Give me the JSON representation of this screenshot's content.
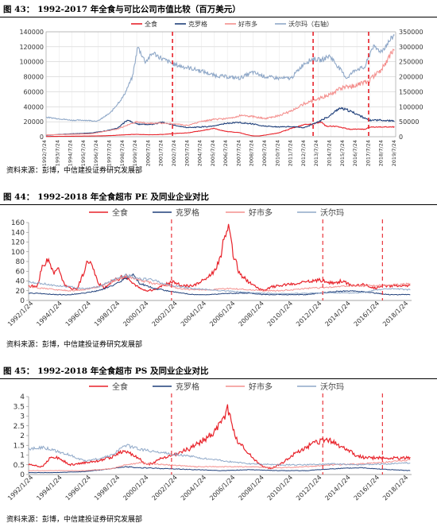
{
  "figures": [
    {
      "title_num": "图 43：",
      "title_text": "1992-2017 年全食与可比公司市值比较（百万美元）",
      "source": "资料来源：彭博，中信建投证券研究发展部"
    },
    {
      "title_num": "图 44：",
      "title_text": "1992-2018 年全食超市 PE 及同业企业对比",
      "source": "资料来源：彭博，中信建投证券研究发展部"
    },
    {
      "title_num": "图 45：",
      "title_text": "1992-2018 年全食超市 PS 及同业企业对比",
      "source": "资料来源：彭博，中信建投证券研究发展部"
    }
  ],
  "colors": {
    "whole_foods": "#e8222a",
    "kroger": "#1f3f7a",
    "costco": "#f4908e",
    "walmart": "#8fa8c8",
    "dashed": "#e8222a"
  },
  "chart_data": [
    {
      "type": "line",
      "title": "1992-2017 年全食与可比公司市值比较（百万美元）",
      "legend": [
        "全食",
        "克罗格",
        "好市多",
        "沃尔玛（右轴）"
      ],
      "legend_position": "top",
      "yticks_left": [
        "0",
        "20000",
        "40000",
        "60000",
        "80000",
        "100000",
        "120000",
        "140000"
      ],
      "yticks_right": [
        "0",
        "50000",
        "100000",
        "150000",
        "200000",
        "250000",
        "300000",
        "350000"
      ],
      "ylim_left": [
        0,
        140000
      ],
      "ylim_right": [
        0,
        350000
      ],
      "xticks": [
        "1992/7/24",
        "1993/7/24",
        "1994/7/24",
        "1995/7/24",
        "1996/7/24",
        "1997/7/24",
        "1998/7/24",
        "1999/7/24",
        "2000/7/24",
        "2001/7/24",
        "2002/7/24",
        "2003/7/24",
        "2004/7/24",
        "2005/7/24",
        "2006/7/24",
        "2007/7/24",
        "2008/7/24",
        "2009/7/24",
        "2010/7/24",
        "2011/7/24",
        "2012/7/24",
        "2013/7/24",
        "2014/7/24",
        "2015/7/24",
        "2016/7/24",
        "2017/7/24",
        "2018/7/24",
        "2019/7/24"
      ],
      "x_range": [
        1992.5,
        2019.6
      ],
      "dashed_vlines": [
        2002.3,
        2013.2,
        2017.5
      ],
      "grid": true,
      "series": [
        {
          "name": "全食",
          "axis": "left",
          "x": [
            1992.5,
            1994,
            1996,
            1997.5,
            1998.5,
            1999.5,
            2000.5,
            2001.5,
            2002.5,
            2003.5,
            2004.5,
            2005.5,
            2006.0,
            2006.5,
            2007.5,
            2008.0,
            2008.5,
            2009.0,
            2009.5,
            2010.5,
            2011.5,
            2012.5,
            2013.2,
            2013.8,
            2014.2,
            2015,
            2016,
            2017.2,
            2017.6,
            2018.5,
            2019.5
          ],
          "y": [
            300,
            600,
            900,
            1500,
            2500,
            3200,
            2600,
            3000,
            4300,
            5200,
            8000,
            11000,
            8800,
            7000,
            5500,
            3000,
            1200,
            1000,
            2200,
            5000,
            11000,
            16000,
            17000,
            20000,
            14000,
            14000,
            10000,
            10000,
            13000,
            13000,
            13000
          ]
        },
        {
          "name": "克罗格",
          "axis": "left",
          "x": [
            1992.5,
            1994,
            1996,
            1997,
            1998,
            1998.8,
            1999.5,
            2000.5,
            2001.5,
            2002.5,
            2003.5,
            2004.5,
            2005.5,
            2006.5,
            2007.5,
            2008.5,
            2009.5,
            2010.5,
            2011.5,
            2012.5,
            2013.5,
            2014.5,
            2015.2,
            2015.8,
            2016.5,
            2017.5,
            2018.5,
            2019.5
          ],
          "y": [
            2000,
            3500,
            5000,
            7500,
            11000,
            22000,
            17000,
            16000,
            19000,
            15000,
            12000,
            13000,
            14000,
            18000,
            19000,
            17000,
            14000,
            13000,
            13500,
            12000,
            19000,
            28000,
            38000,
            36000,
            31000,
            22000,
            22000,
            21000
          ]
        },
        {
          "name": "好市多",
          "axis": "left",
          "x": [
            1992.5,
            1994,
            1996,
            1998,
            1999.5,
            2000.5,
            2001.5,
            2002.5,
            2003.5,
            2004.5,
            2005.5,
            2006.5,
            2007.5,
            2008.5,
            2009.5,
            2010.5,
            2011.5,
            2012.5,
            2013.5,
            2014.5,
            2015.5,
            2016.5,
            2017.5,
            2018.5,
            2019.5
          ],
          "y": [
            2500,
            3000,
            4000,
            10000,
            20000,
            18000,
            18000,
            17000,
            15000,
            20000,
            23000,
            24000,
            28000,
            27000,
            24000,
            28000,
            34000,
            44000,
            50000,
            56000,
            66000,
            68000,
            74000,
            90000,
            118000
          ]
        },
        {
          "name": "沃尔玛（右轴）",
          "axis": "right",
          "x": [
            1992.5,
            1993.5,
            1994.5,
            1995.5,
            1996.5,
            1997.5,
            1998.5,
            1999.2,
            1999.6,
            2000.2,
            2000.8,
            2001.5,
            2002.5,
            2003.5,
            2004.5,
            2005.5,
            2006.5,
            2007.5,
            2008.5,
            2009.5,
            2010.5,
            2011.5,
            2012.5,
            2013.2,
            2013.8,
            2014.5,
            2015.2,
            2015.8,
            2016.5,
            2017.2,
            2017.8,
            2018.5,
            2019.5
          ],
          "y": [
            65000,
            60000,
            55000,
            55000,
            52000,
            80000,
            135000,
            200000,
            300000,
            250000,
            280000,
            260000,
            240000,
            230000,
            220000,
            205000,
            200000,
            195000,
            215000,
            200000,
            195000,
            195000,
            245000,
            260000,
            255000,
            270000,
            230000,
            195000,
            225000,
            230000,
            300000,
            285000,
            340000
          ]
        }
      ]
    },
    {
      "type": "line",
      "title": "1992-2018 年全食超市 PE 及同业企业对比",
      "legend": [
        "全食",
        "克罗格",
        "好市多",
        "沃尔玛"
      ],
      "legend_position": "top",
      "yticks": [
        "0",
        "20",
        "40",
        "60",
        "80",
        "100",
        "120",
        "140",
        "160"
      ],
      "ylim": [
        0,
        160
      ],
      "xticks": [
        "1992/1/24",
        "1994/1/24",
        "1996/1/24",
        "1998/1/24",
        "2000/1/24",
        "2002/1/24",
        "2004/1/24",
        "2006/1/24",
        "2008/1/24",
        "2010/1/24",
        "2012/1/24",
        "2014/1/24",
        "2016/1/24",
        "2018/1/24"
      ],
      "x_range": [
        1992.0,
        2019.6
      ],
      "dashed_vlines": [
        2002.3,
        2013.2,
        2017.5
      ],
      "grid": false,
      "series": [
        {
          "name": "全食",
          "x": [
            1992.0,
            1992.6,
            1993.0,
            1993.4,
            1993.8,
            1994.2,
            1994.6,
            1995.0,
            1995.5,
            1996.0,
            1996.3,
            1996.6,
            1997.0,
            1997.5,
            1998.0,
            1998.5,
            1999.0,
            1999.5,
            2000.0,
            2000.5,
            2001.0,
            2001.5,
            2002.0,
            2002.5,
            2003.0,
            2003.5,
            2004.0,
            2004.5,
            2005.0,
            2005.5,
            2005.9,
            2006.1,
            2006.4,
            2006.8,
            2007.2,
            2007.6,
            2008.0,
            2008.5,
            2009.0,
            2009.5,
            2010.0,
            2010.5,
            2011.0,
            2011.5,
            2012.0,
            2012.5,
            2013.0,
            2013.5,
            2014.0,
            2014.5,
            2015.0,
            2015.5,
            2016.0,
            2016.5,
            2017.0,
            2017.5,
            2018.0,
            2018.5,
            2019.5
          ],
          "y": [
            30,
            28,
            70,
            82,
            55,
            65,
            30,
            25,
            24,
            60,
            85,
            70,
            35,
            25,
            40,
            45,
            50,
            35,
            25,
            20,
            22,
            28,
            35,
            38,
            30,
            30,
            32,
            40,
            50,
            65,
            90,
            140,
            145,
            90,
            55,
            45,
            35,
            25,
            20,
            28,
            30,
            32,
            33,
            35,
            38,
            40,
            42,
            38,
            35,
            40,
            35,
            30,
            33,
            30,
            25,
            30,
            30,
            30,
            30
          ]
        },
        {
          "name": "克罗格",
          "x": [
            1992.0,
            1993,
            1994,
            1995,
            1996,
            1997,
            1998,
            1999,
            1999.5,
            2000,
            2001,
            2002,
            2003,
            2004,
            2005,
            2006,
            2007,
            2008,
            2009,
            2010,
            2011,
            2012,
            2013,
            2014,
            2015,
            2016,
            2017,
            2018,
            2019.5
          ],
          "y": [
            15,
            14,
            12,
            12,
            15,
            20,
            30,
            45,
            55,
            35,
            25,
            20,
            15,
            12,
            12,
            14,
            15,
            15,
            12,
            12,
            12,
            12,
            15,
            18,
            20,
            18,
            15,
            12,
            12
          ]
        },
        {
          "name": "好市多",
          "x": [
            1992.0,
            1993,
            1994,
            1995,
            1996,
            1997,
            1998,
            1999,
            2000,
            2001,
            2002,
            2003,
            2004,
            2005,
            2006,
            2007,
            2008,
            2009,
            2010,
            2011,
            2012,
            2013,
            2014,
            2015,
            2016,
            2017,
            2018,
            2019.5
          ],
          "y": [
            28,
            25,
            22,
            20,
            22,
            28,
            38,
            50,
            42,
            35,
            30,
            24,
            22,
            22,
            24,
            24,
            22,
            20,
            20,
            22,
            25,
            26,
            28,
            30,
            30,
            30,
            32,
            34
          ]
        },
        {
          "name": "沃尔玛",
          "x": [
            1992.0,
            1993,
            1994,
            1995,
            1996,
            1997,
            1998,
            1999,
            2000,
            2001,
            2002,
            2003,
            2004,
            2005,
            2006,
            2007,
            2008,
            2009,
            2010,
            2011,
            2012,
            2013,
            2014,
            2015,
            2016,
            2017,
            2018,
            2019.5
          ],
          "y": [
            38,
            35,
            30,
            28,
            24,
            28,
            40,
            52,
            45,
            42,
            32,
            28,
            24,
            22,
            20,
            18,
            16,
            15,
            14,
            14,
            15,
            15,
            16,
            15,
            16,
            22,
            24,
            22
          ]
        }
      ]
    },
    {
      "type": "line",
      "title": "1992-2018 年全食超市 PS 及同业企业对比",
      "legend": [
        "全食",
        "克罗格",
        "好市多",
        "沃尔玛"
      ],
      "legend_position": "top",
      "yticks": [
        "0",
        "0.5",
        "1",
        "1.5",
        "2",
        "2.5",
        "3",
        "3.5",
        "4"
      ],
      "ylim": [
        0,
        4
      ],
      "xticks": [
        "1992/1/24",
        "1994/1/24",
        "1996/1/24",
        "1998/1/24",
        "2000/1/24",
        "2002/1/24",
        "2004/1/24",
        "2006/1/24",
        "2008/1/24",
        "2010/1/24",
        "2012/1/24",
        "2014/1/24",
        "2016/1/24",
        "2018/1/24"
      ],
      "x_range": [
        1992.0,
        2019.6
      ],
      "dashed_vlines": [
        2002.3,
        2013.2,
        2017.5
      ],
      "grid": false,
      "series": [
        {
          "name": "全食",
          "x": [
            1992.0,
            1993,
            1993.5,
            1994,
            1995,
            1996,
            1997,
            1998,
            1998.5,
            1999,
            1999.5,
            2000,
            2000.5,
            2001,
            2001.5,
            2002,
            2002.5,
            2003,
            2003.5,
            2004,
            2004.5,
            2005,
            2005.5,
            2006,
            2006.3,
            2006.6,
            2007,
            2007.5,
            2008,
            2008.5,
            2009,
            2009.5,
            2010,
            2010.5,
            2011,
            2011.5,
            2012,
            2012.5,
            2013,
            2013.5,
            2014,
            2014.5,
            2015,
            2015.5,
            2016,
            2016.5,
            2017,
            2017.5,
            2018,
            2018.5,
            2019.5
          ],
          "y": [
            0.5,
            0.4,
            0.8,
            0.9,
            0.5,
            0.6,
            0.7,
            0.9,
            1.1,
            1.2,
            1.0,
            0.8,
            0.5,
            0.6,
            0.8,
            0.9,
            1.0,
            1.2,
            1.3,
            1.5,
            1.7,
            2.0,
            2.3,
            2.8,
            3.4,
            2.7,
            1.8,
            1.4,
            1.0,
            0.6,
            0.4,
            0.3,
            0.5,
            0.7,
            1.0,
            1.2,
            1.4,
            1.6,
            1.7,
            1.8,
            1.7,
            1.4,
            1.3,
            1.0,
            0.9,
            0.85,
            0.85,
            0.85,
            0.85,
            0.85,
            0.85
          ]
        },
        {
          "name": "克罗格",
          "x": [
            1992.0,
            1994,
            1996,
            1998,
            1999,
            2000,
            2002,
            2004,
            2006,
            2008,
            2010,
            2012,
            2014,
            2016,
            2018,
            2019.5
          ],
          "y": [
            0.1,
            0.1,
            0.15,
            0.3,
            0.4,
            0.35,
            0.3,
            0.25,
            0.2,
            0.25,
            0.2,
            0.2,
            0.3,
            0.35,
            0.25,
            0.2
          ]
        },
        {
          "name": "好市多",
          "x": [
            1992.0,
            1994,
            1996,
            1998,
            1999,
            2000,
            2002,
            2004,
            2006,
            2008,
            2010,
            2012,
            2014,
            2016,
            2018,
            2019.5
          ],
          "y": [
            0.2,
            0.2,
            0.2,
            0.3,
            0.5,
            0.6,
            0.5,
            0.4,
            0.4,
            0.4,
            0.35,
            0.4,
            0.5,
            0.55,
            0.65,
            0.75
          ]
        },
        {
          "name": "沃尔玛",
          "x": [
            1992.0,
            1993,
            1994,
            1995,
            1996,
            1997,
            1998,
            1999,
            2000,
            2001,
            2002,
            2004,
            2006,
            2008,
            2010,
            2012,
            2014,
            2016,
            2018,
            2019.5
          ],
          "y": [
            1.3,
            1.4,
            1.2,
            1.0,
            0.7,
            0.8,
            1.0,
            1.5,
            1.3,
            1.2,
            1.1,
            0.9,
            0.7,
            0.55,
            0.5,
            0.5,
            0.55,
            0.5,
            0.55,
            0.6
          ]
        }
      ]
    }
  ]
}
